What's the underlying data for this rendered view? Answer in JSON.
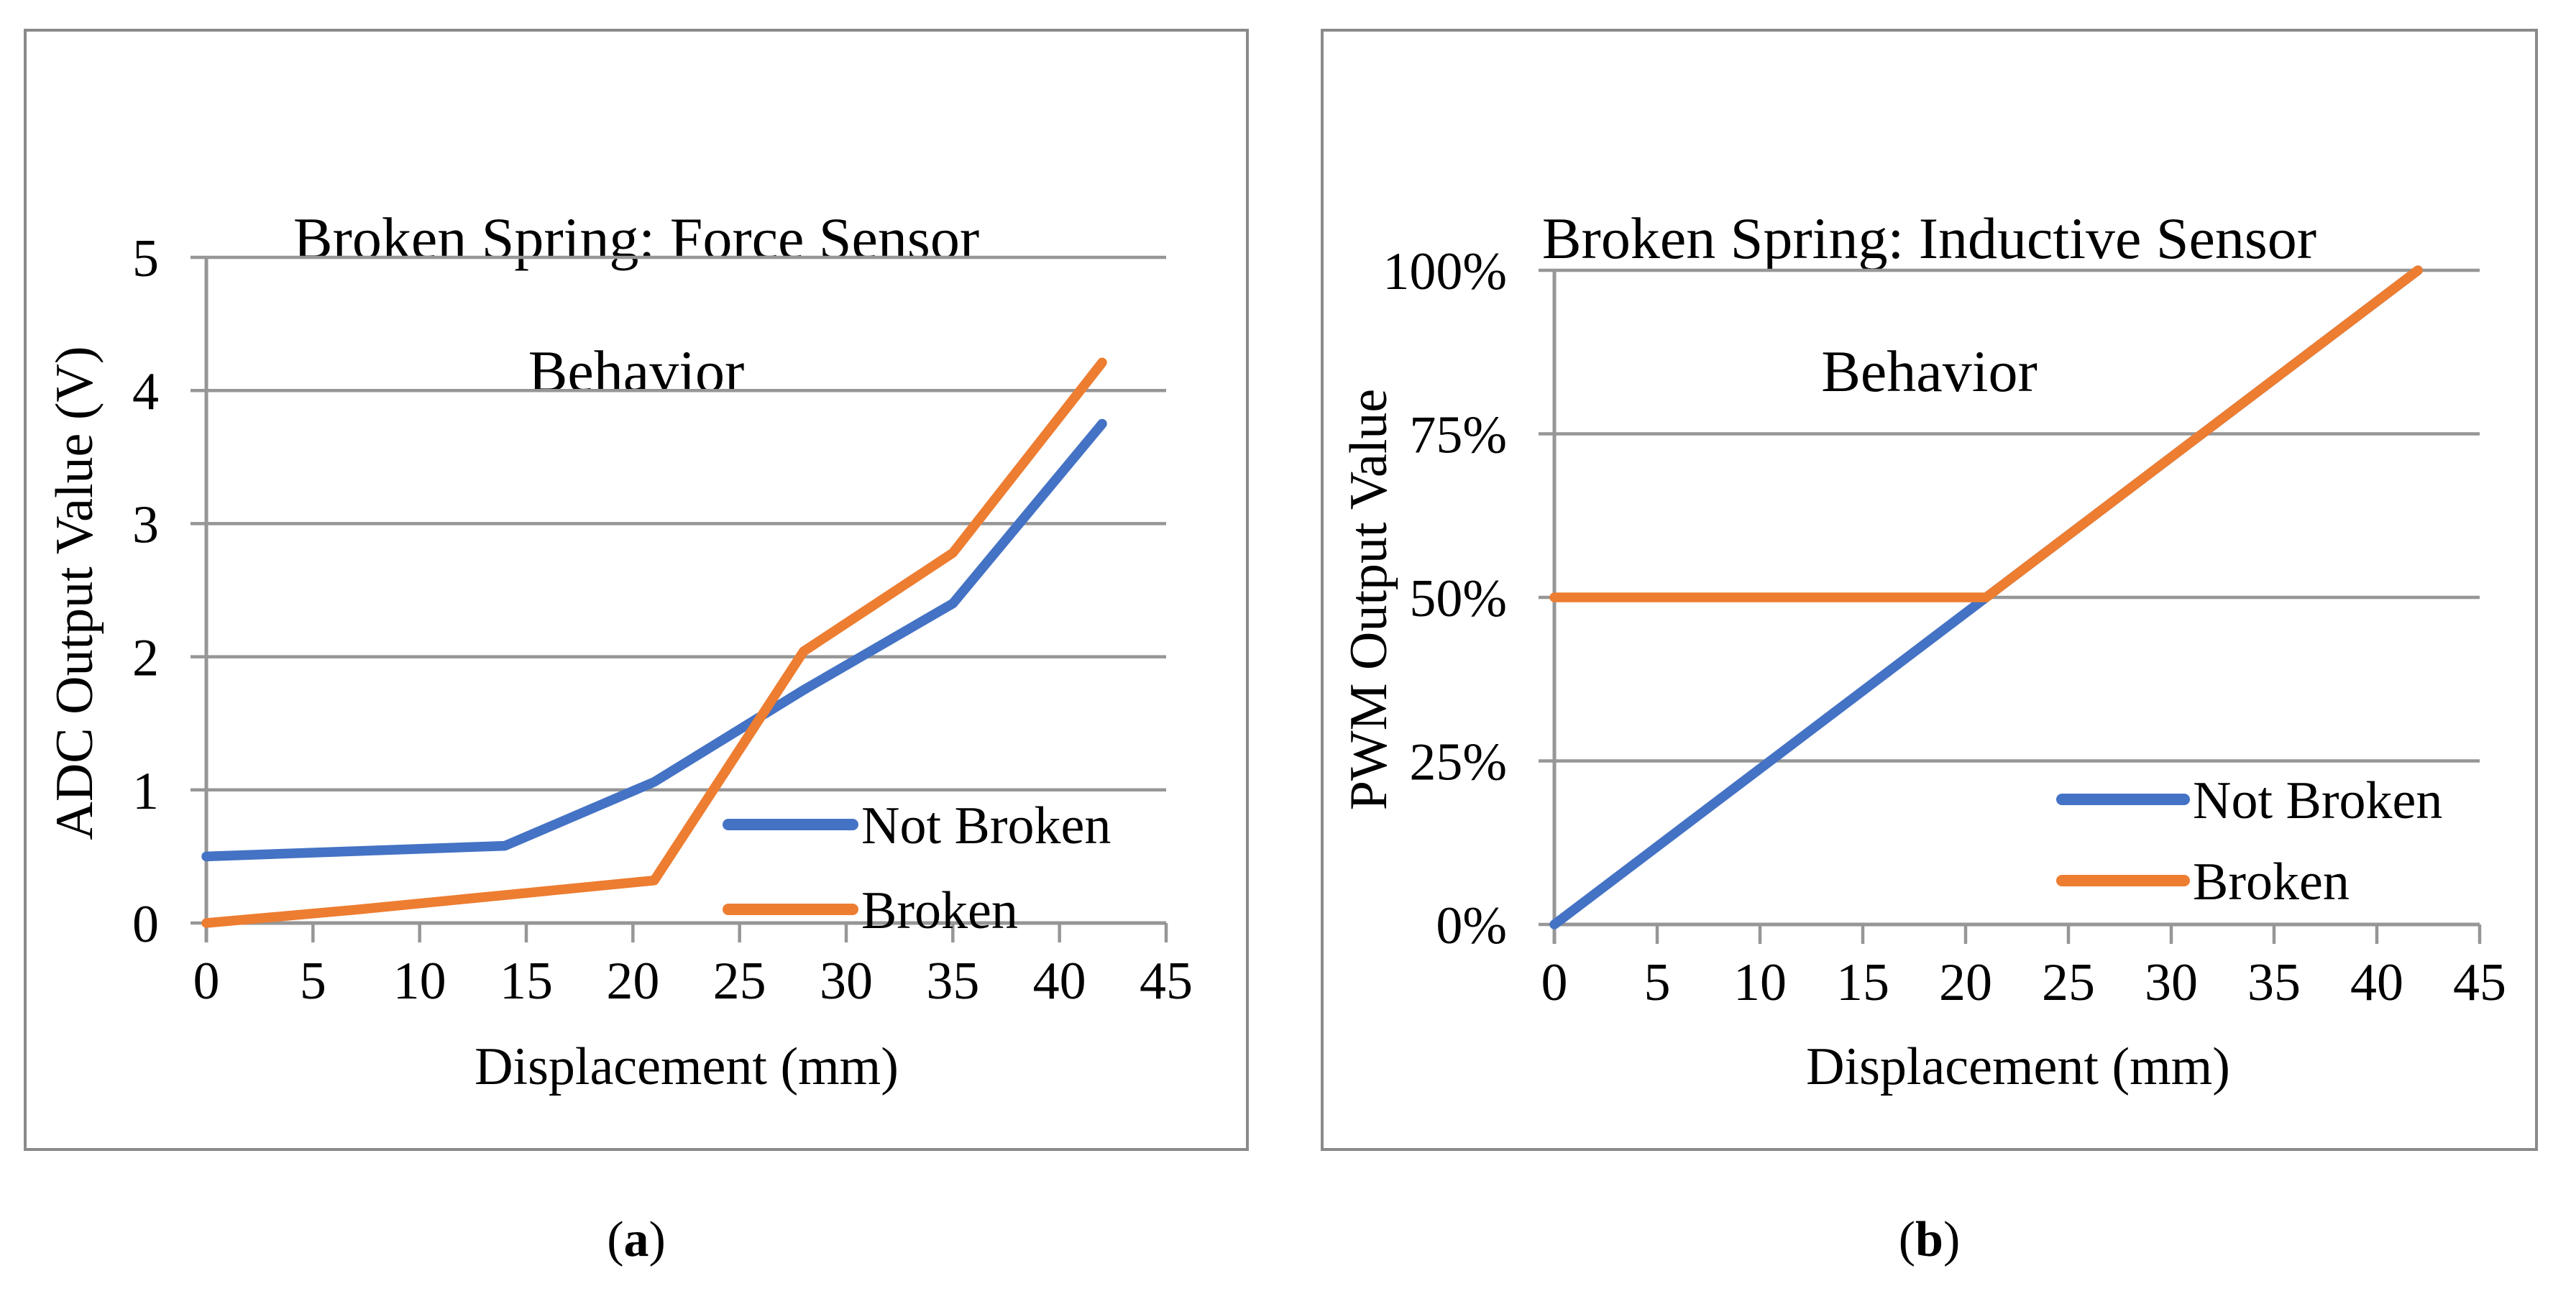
{
  "colors": {
    "not_broken": "#4472C4",
    "broken": "#ED7D31",
    "axis": "#969696",
    "grid": "#969696",
    "panel_border": "#8A8A8A",
    "text": "#000000"
  },
  "captions": {
    "a": {
      "prefix": "(",
      "letter": "a",
      "suffix": ")"
    },
    "b": {
      "prefix": "(",
      "letter": "b",
      "suffix": ")"
    }
  },
  "chart_data": [
    {
      "type": "line",
      "title": "Broken Spring: Force Sensor Behavior",
      "title_lines": [
        "Broken Spring: Force Sensor",
        "Behavior"
      ],
      "xlabel": "Displacement (mm)",
      "ylabel": "ADC Output Value (V)",
      "xlim": [
        0,
        45
      ],
      "ylim": [
        0,
        5
      ],
      "x_ticks": [
        0,
        5,
        10,
        15,
        20,
        25,
        30,
        35,
        40,
        45
      ],
      "x_tick_labels": [
        "0",
        "5",
        "10",
        "15",
        "20",
        "25",
        "30",
        "35",
        "40",
        "45"
      ],
      "y_ticks": [
        0,
        1,
        2,
        3,
        4,
        5
      ],
      "y_tick_labels": [
        "0",
        "1",
        "2",
        "3",
        "4",
        "5"
      ],
      "grid": true,
      "legend_position": "inside-lower-right",
      "legend_entries": [
        "Not Broken",
        "Broken"
      ],
      "series": [
        {
          "name": "Not Broken",
          "color_key": "not_broken",
          "points": [
            [
              0,
              0.5
            ],
            [
              7,
              0.54
            ],
            [
              14,
              0.58
            ],
            [
              21,
              1.06
            ],
            [
              28,
              1.75
            ],
            [
              35,
              2.4
            ],
            [
              42,
              3.75
            ]
          ]
        },
        {
          "name": "Broken",
          "color_key": "broken",
          "points": [
            [
              0,
              0
            ],
            [
              7,
              0.1
            ],
            [
              14,
              0.21
            ],
            [
              21,
              0.32
            ],
            [
              28,
              2.04
            ],
            [
              35,
              2.78
            ],
            [
              42,
              4.21
            ]
          ]
        }
      ]
    },
    {
      "type": "line",
      "title": "Broken Spring: Inductive Sensor Behavior",
      "title_lines": [
        "Broken Spring: Inductive Sensor",
        "Behavior"
      ],
      "xlabel": "Displacement (mm)",
      "ylabel": "PWM Output Value",
      "xlim": [
        0,
        45
      ],
      "ylim": [
        0,
        100
      ],
      "x_ticks": [
        0,
        5,
        10,
        15,
        20,
        25,
        30,
        35,
        40,
        45
      ],
      "x_tick_labels": [
        "0",
        "5",
        "10",
        "15",
        "20",
        "25",
        "30",
        "35",
        "40",
        "45"
      ],
      "y_ticks": [
        0,
        25,
        50,
        75,
        100
      ],
      "y_tick_labels": [
        "0%",
        "25%",
        "50%",
        "75%",
        "100%"
      ],
      "grid": true,
      "legend_position": "inside-middle-right",
      "legend_entries": [
        "Not Broken",
        "Broken"
      ],
      "series": [
        {
          "name": "Not Broken",
          "color_key": "not_broken",
          "points": [
            [
              0,
              0
            ],
            [
              21,
              50
            ],
            [
              42,
              100
            ]
          ]
        },
        {
          "name": "Broken",
          "color_key": "broken",
          "points": [
            [
              0,
              50
            ],
            [
              21,
              50
            ],
            [
              42,
              100
            ]
          ]
        }
      ]
    }
  ]
}
